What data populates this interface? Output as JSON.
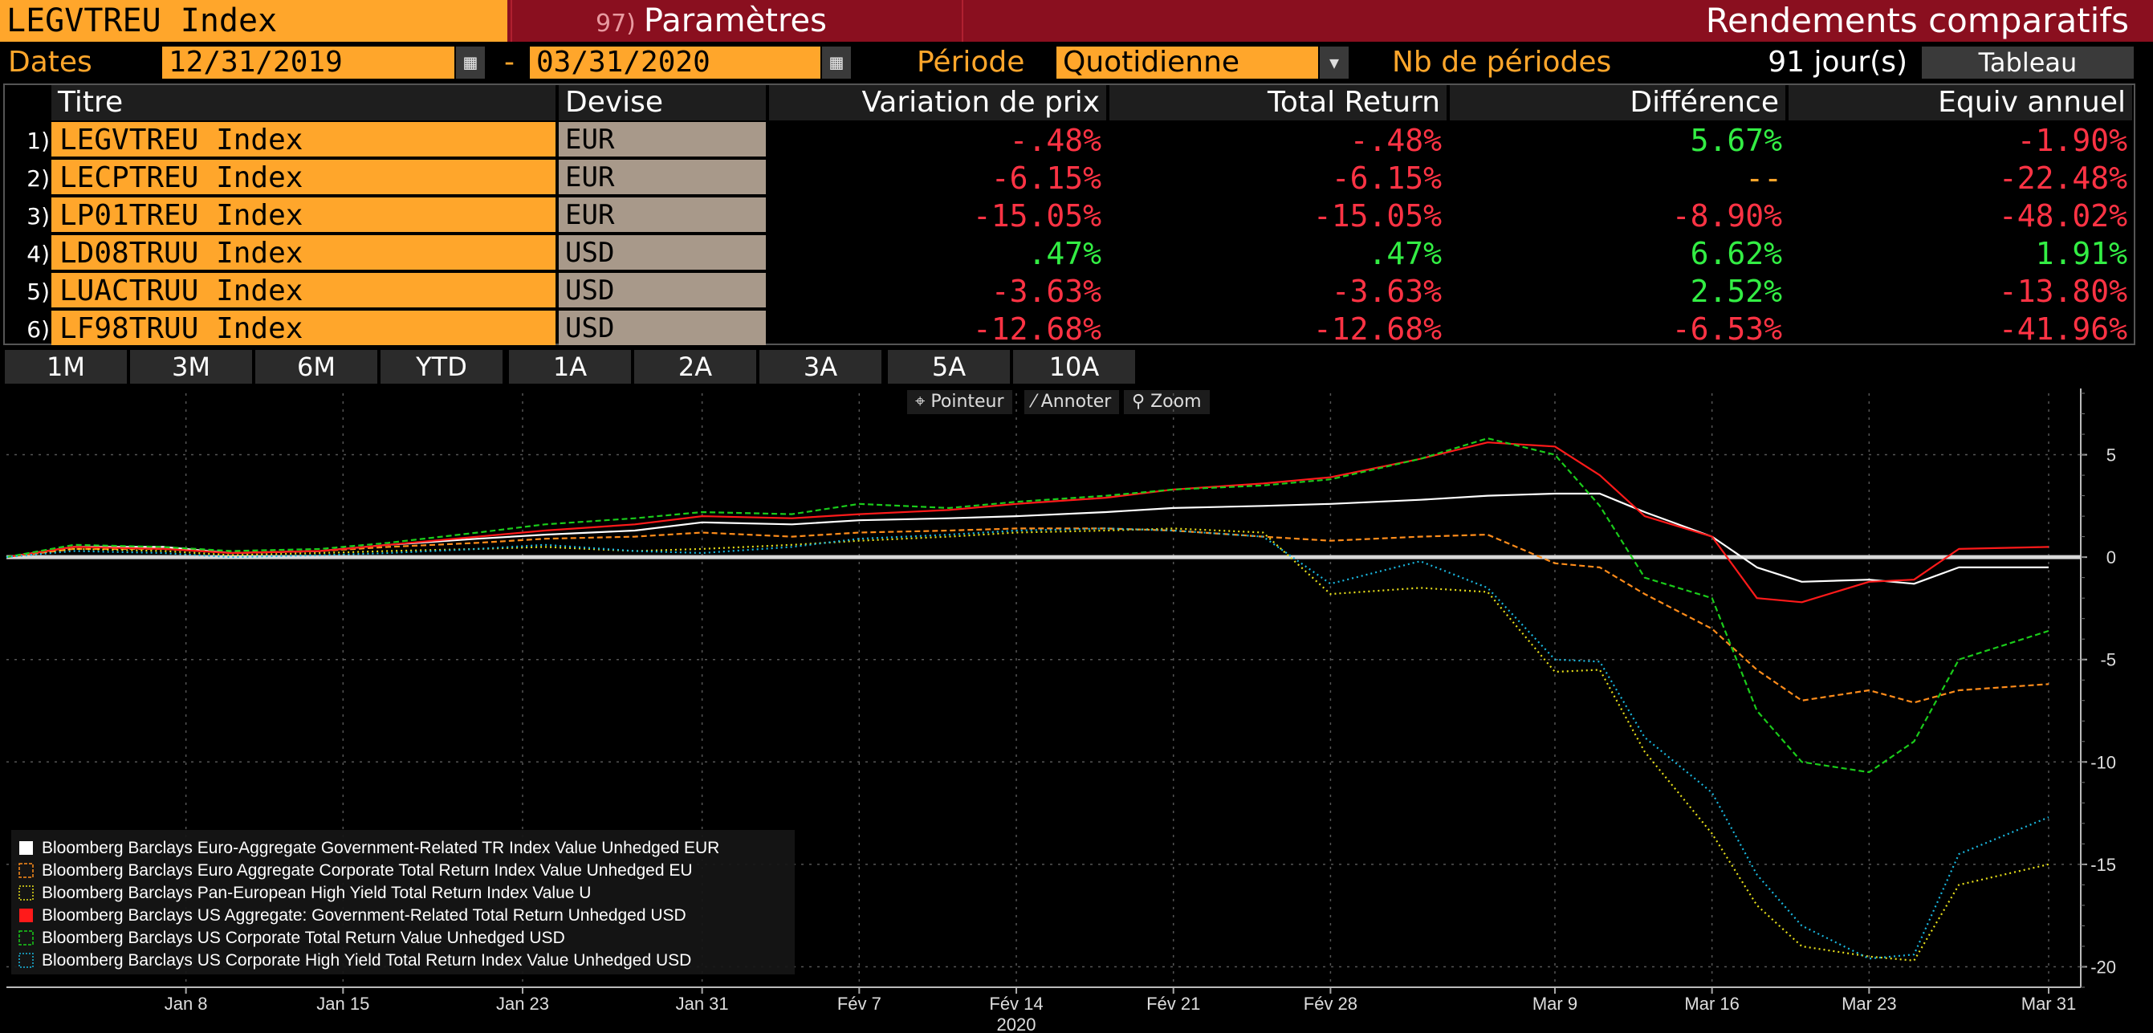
{
  "header": {
    "ticker": "LEGVTREU Index",
    "param_num": "97)",
    "param_label": "Paramètres",
    "title": "Rendements comparatifs"
  },
  "controls": {
    "dates_label": "Dates",
    "start_date": "12/31/2019",
    "dash": "-",
    "end_date": "03/31/2020",
    "period_label": "Période",
    "period_value": "Quotidienne",
    "nperiods_label": "Nb de périodes",
    "nperiods_value": "91 jour(s)",
    "tableau_label": "Tableau"
  },
  "table": {
    "headers": [
      "Titre",
      "Devise",
      "Variation de prix",
      "Total Return",
      "Différence",
      "Equiv annuel"
    ],
    "rows": [
      {
        "num": "1)",
        "title": "LEGVTREU Index",
        "cur": "EUR",
        "price": "-.48%",
        "tr": "-.48%",
        "diff": "5.67%",
        "ann": "-1.90%"
      },
      {
        "num": "2)",
        "title": "LECPTREU Index",
        "cur": "EUR",
        "price": "-6.15%",
        "tr": "-6.15%",
        "diff": "--",
        "ann": "-22.48%"
      },
      {
        "num": "3)",
        "title": "LP01TREU Index",
        "cur": "EUR",
        "price": "-15.05%",
        "tr": "-15.05%",
        "diff": "-8.90%",
        "ann": "-48.02%"
      },
      {
        "num": "4)",
        "title": "LD08TRUU Index",
        "cur": "USD",
        "price": ".47%",
        "tr": ".47%",
        "diff": "6.62%",
        "ann": "1.91%"
      },
      {
        "num": "5)",
        "title": "LUACTRUU Index",
        "cur": "USD",
        "price": "-3.63%",
        "tr": "-3.63%",
        "diff": "2.52%",
        "ann": "-13.80%"
      },
      {
        "num": "6)",
        "title": "LF98TRUU Index",
        "cur": "USD",
        "price": "-12.68%",
        "tr": "-12.68%",
        "diff": "-6.53%",
        "ann": "-41.96%"
      }
    ]
  },
  "ranges": [
    "1M",
    "3M",
    "6M",
    "YTD",
    "1A",
    "2A",
    "3A",
    "5A",
    "10A"
  ],
  "tools": {
    "pointer": "Pointeur",
    "annotate": "Annoter",
    "zoom": "Zoom"
  },
  "colors": {
    "orange": "#ffa62b",
    "header_red": "#8a0f1f",
    "neg": "#ff3344",
    "pos": "#33ee44"
  },
  "chart_data": {
    "type": "line",
    "x_tick_labels": [
      "Jan 8",
      "Jan 15",
      "Jan 23",
      "Jan 31",
      "Fév 7",
      "Fév 14",
      "Fév 21",
      "Fév 28",
      "Mar 9",
      "Mar 16",
      "Mar 23",
      "Mar 31"
    ],
    "x_year_label": "2020",
    "y_ticks": [
      5,
      0,
      -5,
      -10,
      -15,
      -20
    ],
    "ylim": [
      -21,
      8
    ],
    "x": [
      "2019-12-31",
      "2020-01-03",
      "2020-01-07",
      "2020-01-10",
      "2020-01-14",
      "2020-01-17",
      "2020-01-21",
      "2020-01-24",
      "2020-01-28",
      "2020-01-31",
      "2020-02-04",
      "2020-02-07",
      "2020-02-11",
      "2020-02-14",
      "2020-02-18",
      "2020-02-21",
      "2020-02-25",
      "2020-02-28",
      "2020-03-03",
      "2020-03-06",
      "2020-03-09",
      "2020-03-11",
      "2020-03-13",
      "2020-03-16",
      "2020-03-18",
      "2020-03-20",
      "2020-03-23",
      "2020-03-25",
      "2020-03-27",
      "2020-03-31"
    ],
    "series": [
      {
        "name": "Bloomberg Barclays Euro-Aggregate Government-Related TR Index Value Unhedged EUR",
        "color": "#ffffff",
        "style": "solid",
        "values": [
          0,
          0.5,
          0.5,
          0.2,
          0.3,
          0.6,
          0.9,
          1.1,
          1.3,
          1.7,
          1.6,
          1.8,
          1.9,
          2.0,
          2.2,
          2.4,
          2.5,
          2.6,
          2.8,
          3.0,
          3.1,
          3.1,
          2.2,
          1.0,
          -0.5,
          -1.2,
          -1.1,
          -1.3,
          -0.5,
          -0.5
        ]
      },
      {
        "name": "Bloomberg Barclays Euro Aggregate Corporate Total Return Index Value Unhedged EU",
        "color": "#ff8c1a",
        "style": "dash",
        "values": [
          0,
          0.4,
          0.4,
          0.2,
          0.3,
          0.5,
          0.7,
          0.9,
          1.0,
          1.2,
          1.0,
          1.2,
          1.3,
          1.4,
          1.4,
          1.3,
          1.0,
          0.8,
          1.0,
          1.1,
          -0.3,
          -0.5,
          -1.8,
          -3.5,
          -5.5,
          -7.0,
          -6.5,
          -7.1,
          -6.5,
          -6.2
        ]
      },
      {
        "name": "Bloomberg Barclays Pan-European High Yield Total Return Index Value U",
        "color": "#e8e01a",
        "style": "dot",
        "values": [
          0,
          0.4,
          0.3,
          0.1,
          0.2,
          0.3,
          0.4,
          0.5,
          0.3,
          0.4,
          0.6,
          0.8,
          1.0,
          1.2,
          1.3,
          1.4,
          1.2,
          -1.8,
          -1.5,
          -1.7,
          -5.6,
          -5.5,
          -9.5,
          -13.5,
          -17,
          -19,
          -19.5,
          -19.7,
          -16,
          -15
        ]
      },
      {
        "name": "Bloomberg Barclays US Aggregate: Government-Related Total Return Unhedged USD",
        "color": "#ff1a1a",
        "style": "solid",
        "values": [
          0,
          0.5,
          0.4,
          0.2,
          0.3,
          0.6,
          1.0,
          1.3,
          1.6,
          2.0,
          1.9,
          2.1,
          2.3,
          2.6,
          2.9,
          3.3,
          3.6,
          3.9,
          4.8,
          5.6,
          5.4,
          4.0,
          2.0,
          1.0,
          -2.0,
          -2.2,
          -1.2,
          -1.1,
          0.4,
          0.5
        ]
      },
      {
        "name": "Bloomberg Barclays US Corporate Total Return Value Unhedged USD",
        "color": "#1acc1a",
        "style": "dash",
        "values": [
          0,
          0.6,
          0.5,
          0.3,
          0.4,
          0.7,
          1.2,
          1.6,
          1.9,
          2.2,
          2.1,
          2.6,
          2.4,
          2.7,
          3.0,
          3.3,
          3.5,
          3.8,
          4.8,
          5.8,
          5.0,
          2.5,
          -1.0,
          -2.0,
          -7.5,
          -10.0,
          -10.5,
          -9.0,
          -5.0,
          -3.6
        ]
      },
      {
        "name": "Bloomberg Barclays US Corporate High Yield Total Return Index Value Unhedged USD",
        "color": "#1ab8e0",
        "style": "dot",
        "values": [
          0,
          0.3,
          0.2,
          0.0,
          0.1,
          0.2,
          0.4,
          0.6,
          0.3,
          0.2,
          0.5,
          0.9,
          1.1,
          1.3,
          1.4,
          1.3,
          1.0,
          -1.3,
          -0.2,
          -1.5,
          -5.0,
          -5.1,
          -8.8,
          -11.5,
          -15.5,
          -18,
          -19.6,
          -19.4,
          -14.5,
          -12.7
        ]
      }
    ]
  }
}
